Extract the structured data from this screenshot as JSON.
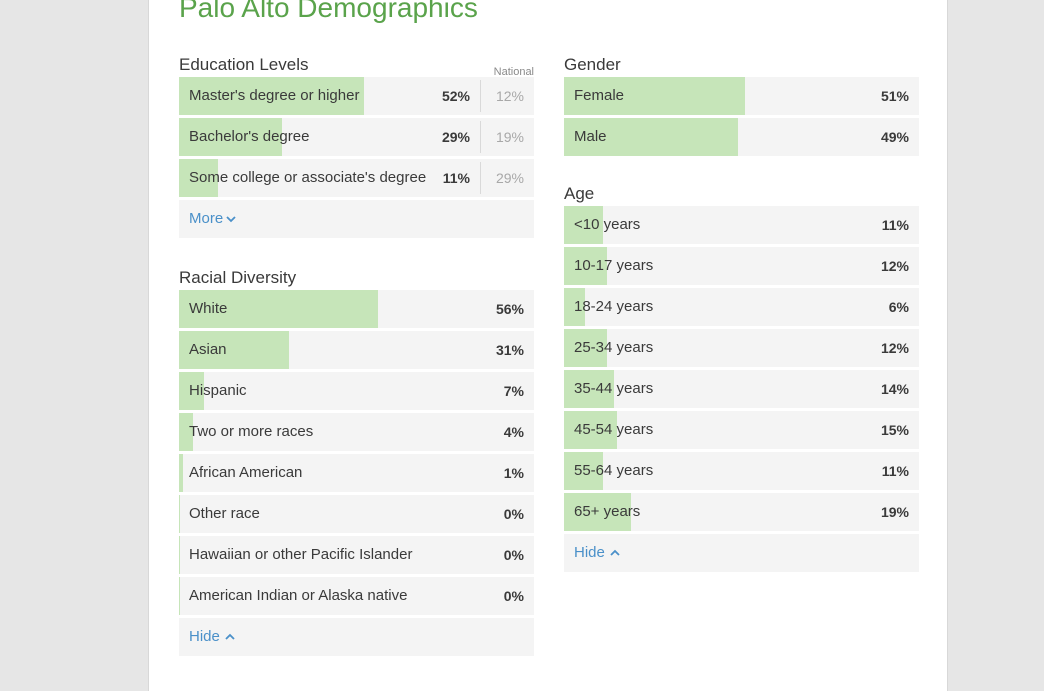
{
  "page_title": "Palo Alto Demographics",
  "education": {
    "title": "Education Levels",
    "national_label": "National",
    "rows": [
      {
        "label": "Master's degree or higher",
        "value": "52%",
        "national": "12%",
        "fill": 0.52
      },
      {
        "label": "Bachelor's degree",
        "value": "29%",
        "national": "19%",
        "fill": 0.29
      },
      {
        "label": "Some college or associate's degree",
        "value": "11%",
        "national": "29%",
        "fill": 0.11
      }
    ],
    "toggle_label": "More"
  },
  "race": {
    "title": "Racial Diversity",
    "rows": [
      {
        "label": "White",
        "value": "56%",
        "fill": 0.56
      },
      {
        "label": "Asian",
        "value": "31%",
        "fill": 0.31
      },
      {
        "label": "Hispanic",
        "value": "7%",
        "fill": 0.07
      },
      {
        "label": "Two or more races",
        "value": "4%",
        "fill": 0.04
      },
      {
        "label": "African American",
        "value": "1%",
        "fill": 0.01
      },
      {
        "label": "Other race",
        "value": "0%",
        "fill": 0.0
      },
      {
        "label": "Hawaiian or other Pacific Islander",
        "value": "0%",
        "fill": 0.0
      },
      {
        "label": "American Indian or Alaska native",
        "value": "0%",
        "fill": 0.0
      }
    ],
    "toggle_label": "Hide"
  },
  "gender": {
    "title": "Gender",
    "rows": [
      {
        "label": "Female",
        "value": "51%",
        "fill": 0.51
      },
      {
        "label": "Male",
        "value": "49%",
        "fill": 0.49
      }
    ]
  },
  "age": {
    "title": "Age",
    "rows": [
      {
        "label": "<10 years",
        "value": "11%",
        "fill": 0.11
      },
      {
        "label": "10-17 years",
        "value": "12%",
        "fill": 0.12
      },
      {
        "label": "18-24 years",
        "value": "6%",
        "fill": 0.06
      },
      {
        "label": "25-34 years",
        "value": "12%",
        "fill": 0.12
      },
      {
        "label": "35-44 years",
        "value": "14%",
        "fill": 0.14
      },
      {
        "label": "45-54 years",
        "value": "15%",
        "fill": 0.15
      },
      {
        "label": "55-64 years",
        "value": "11%",
        "fill": 0.11
      },
      {
        "label": "65+ years",
        "value": "19%",
        "fill": 0.19
      }
    ],
    "toggle_label": "Hide"
  },
  "colors": {
    "title_green": "#5aa34b",
    "bar_green": "#c6e5b9",
    "link_blue": "#4a90c9"
  },
  "icons": {
    "more": "chevron-down-icon",
    "hide": "chevron-up-icon"
  }
}
